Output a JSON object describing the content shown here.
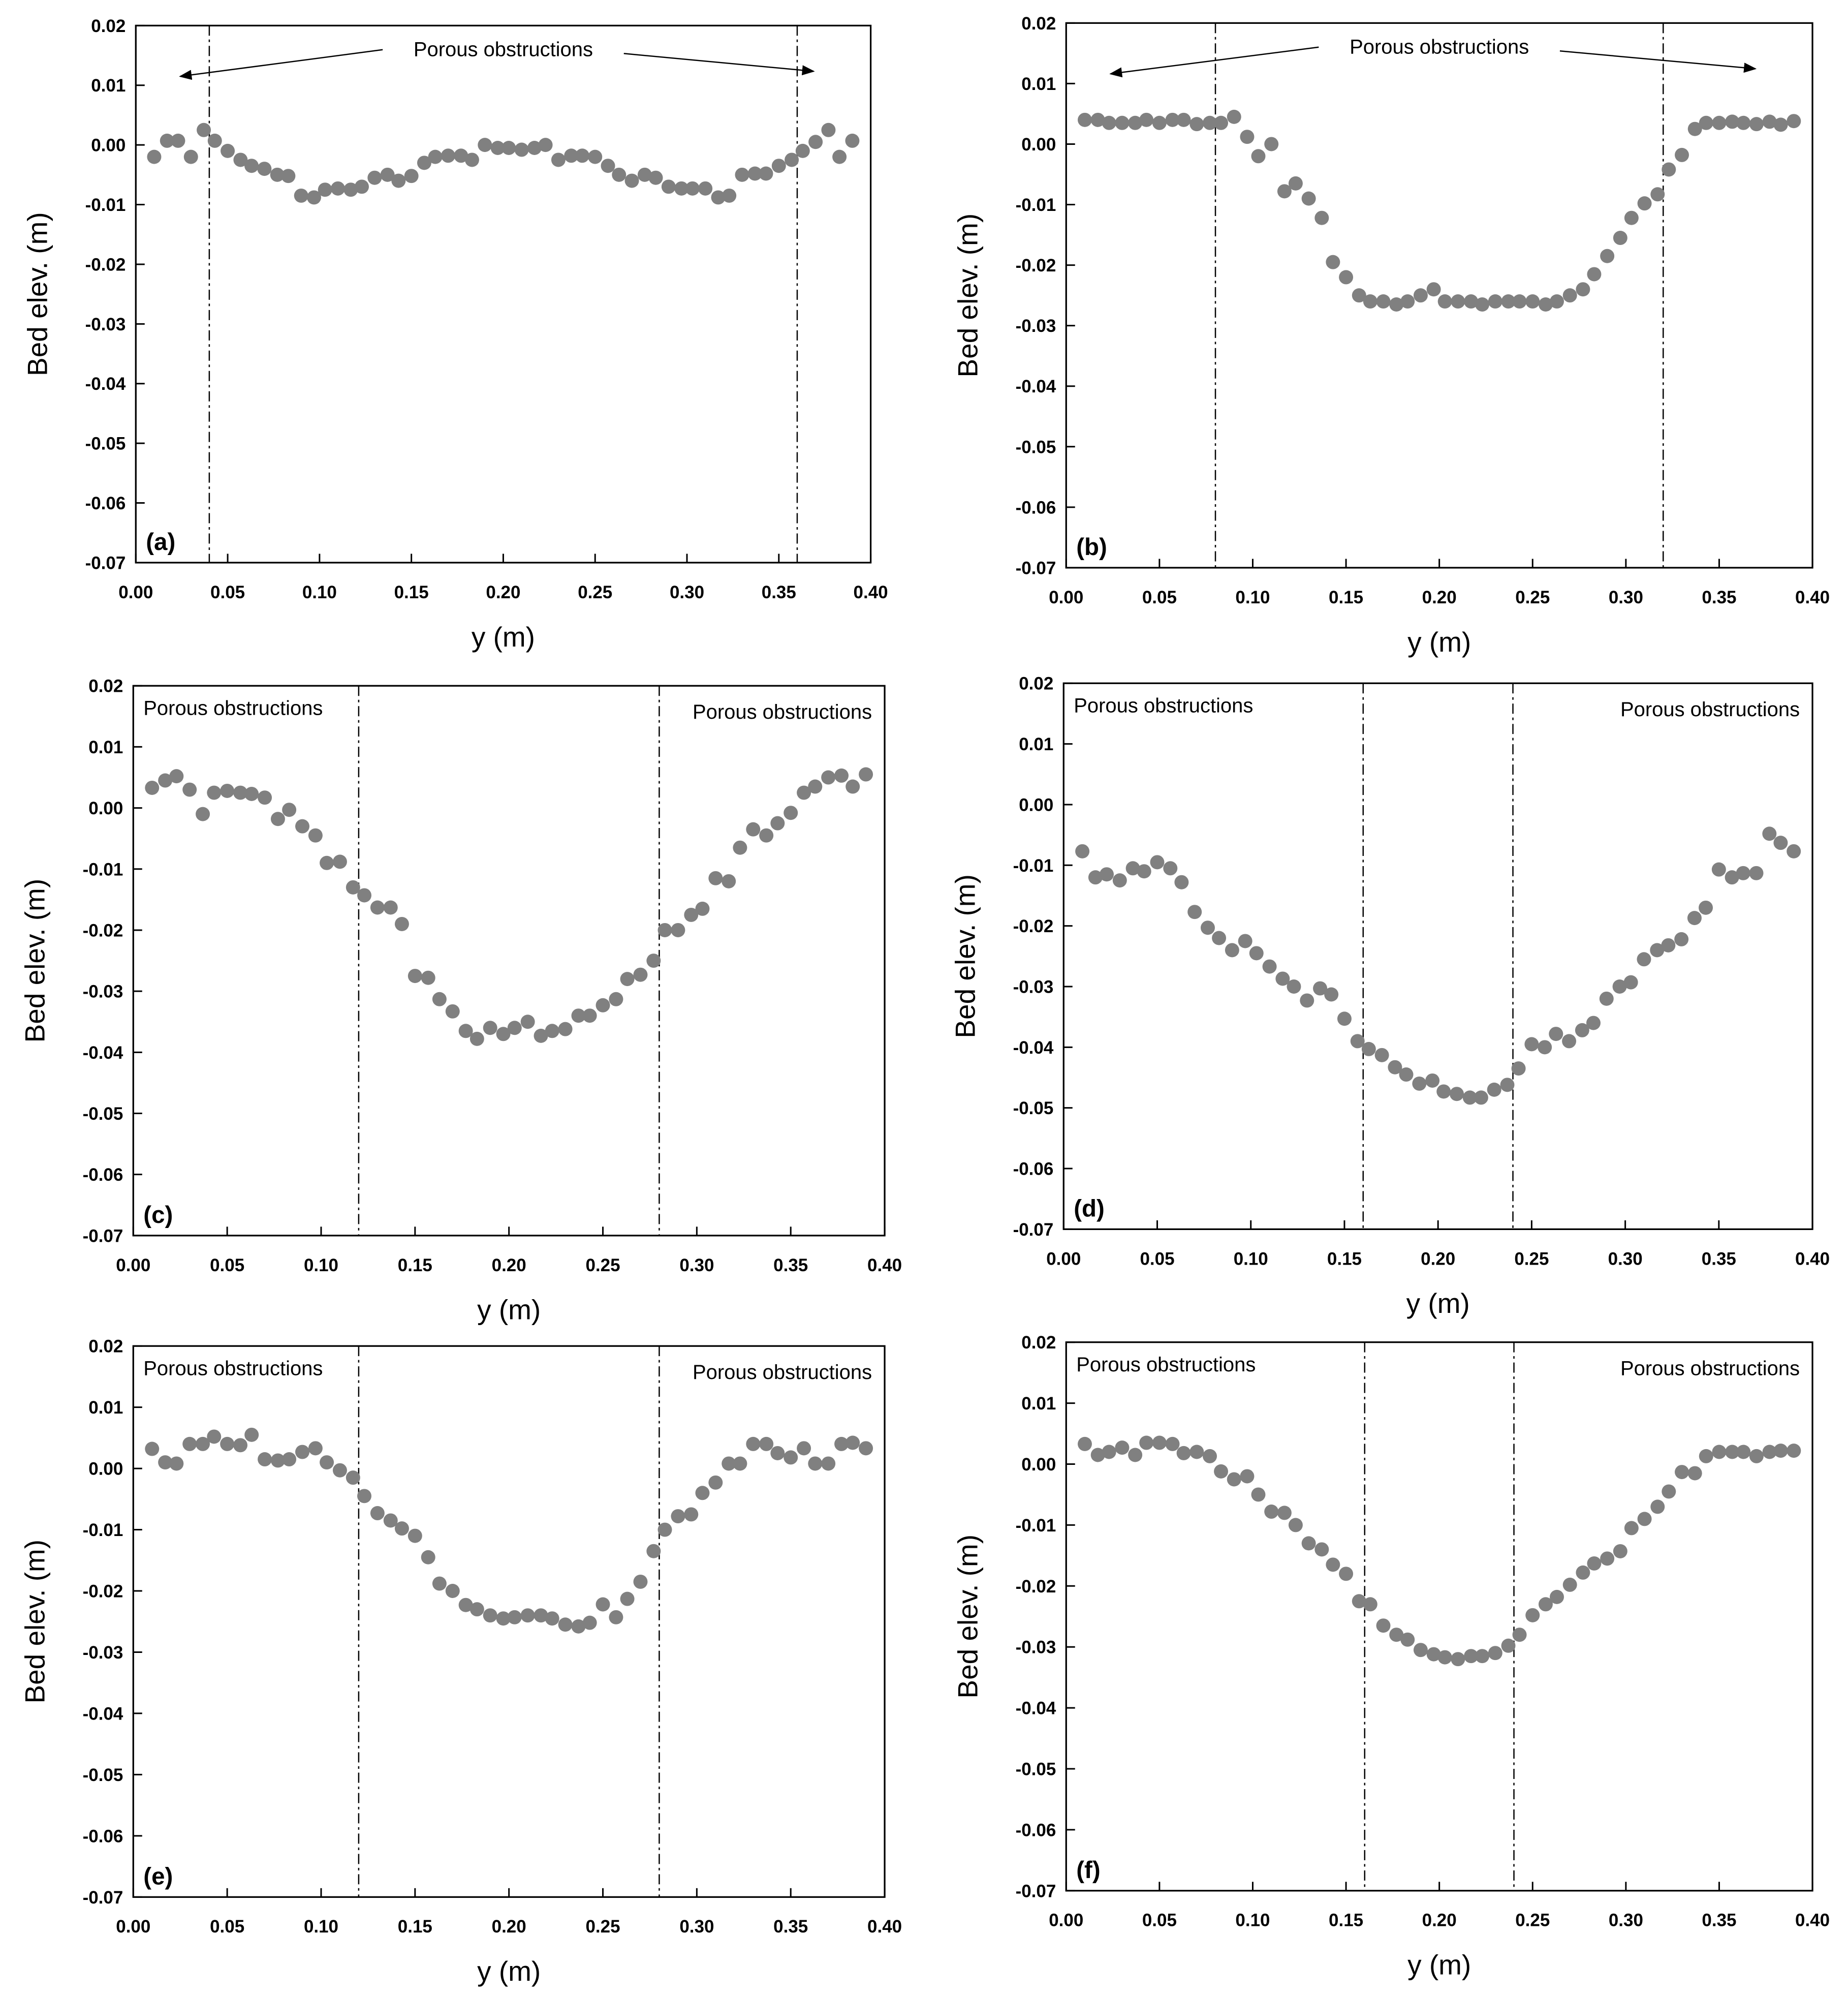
{
  "chart_data": [
    {
      "type": "scatter",
      "panel_label": "(a)",
      "xlabel": "y (m)",
      "ylabel": "Bed elev. (m)",
      "color": "#808080",
      "annotations": [
        "Porous obstructions"
      ],
      "vlines": [
        0.04,
        0.36
      ],
      "xlim": [
        0,
        0.4
      ],
      "ylim": [
        -0.07,
        0.02
      ],
      "xticks": [
        {
          "value": 0,
          "label": "0.00"
        },
        0.05,
        {
          "value": 0.1,
          "label": "0.10"
        },
        0.15,
        {
          "value": 0.2,
          "label": "0.20"
        },
        0.25,
        {
          "value": 0.3,
          "label": "0.30"
        },
        0.35,
        {
          "value": 0.4,
          "label": "0.40"
        }
      ],
      "yticks": [
        0.02,
        0.01,
        {
          "value": 0,
          "label": "0.00"
        },
        -0.01,
        -0.02,
        -0.03,
        -0.04,
        -0.05,
        -0.06,
        -0.07
      ],
      "x": [
        0.01,
        0.017,
        0.023,
        0.03,
        0.037,
        0.043,
        0.05,
        0.057,
        0.063,
        0.07,
        0.077,
        0.083,
        0.09,
        0.097,
        0.103,
        0.11,
        0.117,
        0.123,
        0.13,
        0.137,
        0.143,
        0.15,
        0.157,
        0.163,
        0.17,
        0.177,
        0.183,
        0.19,
        0.197,
        0.203,
        0.21,
        0.217,
        0.223,
        0.23,
        0.237,
        0.243,
        0.25,
        0.257,
        0.263,
        0.27,
        0.277,
        0.283,
        0.29,
        0.297,
        0.303,
        0.31,
        0.317,
        0.323,
        0.33,
        0.337,
        0.343,
        0.35,
        0.357,
        0.363,
        0.37,
        0.377,
        0.383,
        0.39
      ],
      "values": [
        -0.002,
        0.0007,
        0.0007,
        -0.002,
        0.0025,
        0.0007,
        -0.001,
        -0.0025,
        -0.0035,
        -0.004,
        -0.005,
        -0.0052,
        -0.0085,
        -0.0088,
        -0.0075,
        -0.0073,
        -0.0075,
        -0.007,
        -0.0055,
        -0.005,
        -0.006,
        -0.0052,
        -0.003,
        -0.002,
        -0.0018,
        -0.0018,
        -0.0025,
        0,
        -0.0005,
        -0.0005,
        -0.0008,
        -0.0005,
        0,
        -0.0025,
        -0.0018,
        -0.0018,
        -0.002,
        -0.0035,
        -0.005,
        -0.006,
        -0.005,
        -0.0055,
        -0.007,
        -0.0073,
        -0.0073,
        -0.0073,
        -0.0088,
        -0.0085,
        -0.005,
        -0.0048,
        -0.0048,
        -0.0035,
        -0.0025,
        -0.001,
        0.0005,
        0.0025,
        -0.002,
        0.0007
      ]
    },
    {
      "type": "scatter",
      "panel_label": "(b)",
      "xlabel": "y (m)",
      "ylabel": "Bed elev. (m)",
      "color": "#808080",
      "annotations": [
        "Porous obstructions"
      ],
      "vlines": [
        0.08,
        0.32
      ],
      "xlim": [
        0,
        0.4
      ],
      "ylim": [
        -0.07,
        0.02
      ],
      "xticks": [
        {
          "value": 0,
          "label": "0.00"
        },
        0.05,
        {
          "value": 0.1,
          "label": "0.10"
        },
        0.15,
        {
          "value": 0.2,
          "label": "0.20"
        },
        0.25,
        {
          "value": 0.3,
          "label": "0.30"
        },
        0.35,
        {
          "value": 0.4,
          "label": "0.40"
        }
      ],
      "yticks": [
        0.02,
        0.01,
        {
          "value": 0,
          "label": "0.00"
        },
        -0.01,
        -0.02,
        -0.03,
        -0.04,
        -0.05,
        -0.06,
        -0.07
      ],
      "x": [
        0.01,
        0.017,
        0.023,
        0.03,
        0.037,
        0.043,
        0.05,
        0.057,
        0.063,
        0.07,
        0.077,
        0.083,
        0.09,
        0.097,
        0.103,
        0.11,
        0.117,
        0.123,
        0.13,
        0.137,
        0.143,
        0.15,
        0.157,
        0.163,
        0.17,
        0.177,
        0.183,
        0.19,
        0.197,
        0.203,
        0.21,
        0.217,
        0.223,
        0.23,
        0.237,
        0.243,
        0.25,
        0.257,
        0.263,
        0.27,
        0.277,
        0.283,
        0.29,
        0.297,
        0.303,
        0.31,
        0.317,
        0.323,
        0.33,
        0.337,
        0.343,
        0.35,
        0.357,
        0.363,
        0.37,
        0.377,
        0.383,
        0.39
      ],
      "values": [
        0.004,
        0.004,
        0.0035,
        0.0035,
        0.0035,
        0.004,
        0.0035,
        0.004,
        0.004,
        0.0033,
        0.0035,
        0.0035,
        0.0045,
        0.0012,
        -0.002,
        0,
        -0.0078,
        -0.0065,
        -0.009,
        -0.0122,
        -0.0195,
        -0.022,
        -0.025,
        -0.026,
        -0.026,
        -0.0265,
        -0.026,
        -0.025,
        -0.024,
        -0.026,
        -0.026,
        -0.026,
        -0.0265,
        -0.026,
        -0.026,
        -0.026,
        -0.026,
        -0.0265,
        -0.026,
        -0.025,
        -0.024,
        -0.0215,
        -0.0185,
        -0.0155,
        -0.0122,
        -0.0098,
        -0.0083,
        -0.0042,
        -0.0018,
        0.0025,
        0.0035,
        0.0035,
        0.0037,
        0.0035,
        0.0033,
        0.0037,
        0.0032,
        0.0038
      ]
    },
    {
      "type": "scatter",
      "panel_label": "(c)",
      "xlabel": "y (m)",
      "ylabel": "Bed elev. (m)",
      "color": "#808080",
      "annotations": [
        "Porous obstructions",
        "Porous obstructions"
      ],
      "vlines": [
        0.12,
        0.28
      ],
      "xlim": [
        0,
        0.4
      ],
      "ylim": [
        -0.07,
        0.02
      ],
      "xticks": [
        {
          "value": 0,
          "label": "0.00"
        },
        0.05,
        {
          "value": 0.1,
          "label": "0.10"
        },
        0.15,
        {
          "value": 0.2,
          "label": "0.20"
        },
        0.25,
        {
          "value": 0.3,
          "label": "0.30"
        },
        0.35,
        {
          "value": 0.4,
          "label": "0.40"
        }
      ],
      "yticks": [
        0.02,
        0.01,
        {
          "value": 0,
          "label": "0.00"
        },
        -0.01,
        -0.02,
        -0.03,
        -0.04,
        -0.05,
        -0.06,
        -0.07
      ],
      "x": [
        0.01,
        0.017,
        0.023,
        0.03,
        0.037,
        0.043,
        0.05,
        0.057,
        0.063,
        0.07,
        0.077,
        0.083,
        0.09,
        0.097,
        0.103,
        0.11,
        0.117,
        0.123,
        0.13,
        0.137,
        0.143,
        0.15,
        0.157,
        0.163,
        0.17,
        0.177,
        0.183,
        0.19,
        0.197,
        0.203,
        0.21,
        0.217,
        0.223,
        0.23,
        0.237,
        0.243,
        0.25,
        0.257,
        0.263,
        0.27,
        0.277,
        0.283,
        0.29,
        0.297,
        0.303,
        0.31,
        0.317,
        0.323,
        0.33,
        0.337,
        0.343,
        0.35,
        0.357,
        0.363,
        0.37,
        0.377,
        0.383,
        0.39
      ],
      "values": [
        0.0033,
        0.0045,
        0.0052,
        0.003,
        -0.001,
        0.0025,
        0.0028,
        0.0025,
        0.0023,
        0.0017,
        -0.0018,
        -0.0003,
        -0.003,
        -0.0045,
        -0.009,
        -0.0088,
        -0.013,
        -0.0143,
        -0.0163,
        -0.0163,
        -0.019,
        -0.0275,
        -0.0278,
        -0.0313,
        -0.0333,
        -0.0365,
        -0.0378,
        -0.036,
        -0.037,
        -0.036,
        -0.035,
        -0.0373,
        -0.0365,
        -0.0362,
        -0.034,
        -0.034,
        -0.0323,
        -0.0313,
        -0.028,
        -0.0273,
        -0.025,
        -0.02,
        -0.02,
        -0.0175,
        -0.0165,
        -0.0115,
        -0.012,
        -0.0065,
        -0.0035,
        -0.0045,
        -0.0025,
        -0.0008,
        0.0025,
        0.0035,
        0.005,
        0.0053,
        0.0035,
        0.0055
      ]
    },
    {
      "type": "scatter",
      "panel_label": "(d)",
      "xlabel": "y (m)",
      "ylabel": "Bed elev. (m)",
      "color": "#808080",
      "annotations": [
        "Porous obstructions",
        "Porous obstructions"
      ],
      "vlines": [
        0.16,
        0.24
      ],
      "xlim": [
        0,
        0.4
      ],
      "ylim": [
        -0.07,
        0.02
      ],
      "xticks": [
        {
          "value": 0,
          "label": "0.00"
        },
        0.05,
        {
          "value": 0.1,
          "label": "0.10"
        },
        0.15,
        {
          "value": 0.2,
          "label": "0.20"
        },
        0.25,
        {
          "value": 0.3,
          "label": "0.30"
        },
        0.35,
        {
          "value": 0.4,
          "label": "0.40"
        }
      ],
      "yticks": [
        0.02,
        0.01,
        {
          "value": 0,
          "label": "0.00"
        },
        -0.01,
        -0.02,
        -0.03,
        -0.04,
        -0.05,
        -0.06,
        -0.07
      ],
      "x": [
        0.01,
        0.017,
        0.023,
        0.03,
        0.037,
        0.043,
        0.05,
        0.057,
        0.063,
        0.07,
        0.077,
        0.083,
        0.09,
        0.097,
        0.103,
        0.11,
        0.117,
        0.123,
        0.13,
        0.137,
        0.143,
        0.15,
        0.157,
        0.163,
        0.17,
        0.177,
        0.183,
        0.19,
        0.197,
        0.203,
        0.21,
        0.217,
        0.223,
        0.23,
        0.237,
        0.243,
        0.25,
        0.257,
        0.263,
        0.27,
        0.277,
        0.283,
        0.29,
        0.297,
        0.303,
        0.31,
        0.317,
        0.323,
        0.33,
        0.337,
        0.343,
        0.35,
        0.357,
        0.363,
        0.37,
        0.377,
        0.383,
        0.39
      ],
      "values": [
        -0.0077,
        -0.012,
        -0.0115,
        -0.0125,
        -0.0105,
        -0.011,
        -0.0095,
        -0.0105,
        -0.0128,
        -0.0177,
        -0.0203,
        -0.022,
        -0.024,
        -0.0225,
        -0.0245,
        -0.0267,
        -0.0287,
        -0.03,
        -0.0323,
        -0.0303,
        -0.0313,
        -0.0353,
        -0.039,
        -0.0403,
        -0.0413,
        -0.0433,
        -0.0445,
        -0.046,
        -0.0455,
        -0.0473,
        -0.0477,
        -0.0483,
        -0.0483,
        -0.047,
        -0.0462,
        -0.0435,
        -0.0395,
        -0.04,
        -0.0378,
        -0.039,
        -0.0372,
        -0.036,
        -0.032,
        -0.03,
        -0.0293,
        -0.0255,
        -0.024,
        -0.0232,
        -0.0222,
        -0.0187,
        -0.017,
        -0.0107,
        -0.012,
        -0.0113,
        -0.0113,
        -0.0048,
        -0.0063,
        -0.0077
      ]
    },
    {
      "type": "scatter",
      "panel_label": "(e)",
      "xlabel": "y (m)",
      "ylabel": "Bed elev. (m)",
      "color": "#808080",
      "annotations": [
        "Porous obstructions",
        "Porous obstructions"
      ],
      "vlines": [
        0.12,
        0.28
      ],
      "xlim": [
        0,
        0.4
      ],
      "ylim": [
        -0.07,
        0.02
      ],
      "xticks": [
        {
          "value": 0,
          "label": "0.00"
        },
        0.05,
        {
          "value": 0.1,
          "label": "0.10"
        },
        0.15,
        {
          "value": 0.2,
          "label": "0.20"
        },
        0.25,
        {
          "value": 0.3,
          "label": "0.30"
        },
        0.35,
        {
          "value": 0.4,
          "label": "0.40"
        }
      ],
      "yticks": [
        0.02,
        0.01,
        {
          "value": 0,
          "label": "0.00"
        },
        -0.01,
        -0.02,
        -0.03,
        -0.04,
        -0.05,
        -0.06,
        -0.07
      ],
      "x": [
        0.01,
        0.017,
        0.023,
        0.03,
        0.037,
        0.043,
        0.05,
        0.057,
        0.063,
        0.07,
        0.077,
        0.083,
        0.09,
        0.097,
        0.103,
        0.11,
        0.117,
        0.123,
        0.13,
        0.137,
        0.143,
        0.15,
        0.157,
        0.163,
        0.17,
        0.177,
        0.183,
        0.19,
        0.197,
        0.203,
        0.21,
        0.217,
        0.223,
        0.23,
        0.237,
        0.243,
        0.25,
        0.257,
        0.263,
        0.27,
        0.277,
        0.283,
        0.29,
        0.297,
        0.303,
        0.31,
        0.317,
        0.323,
        0.33,
        0.337,
        0.343,
        0.35,
        0.357,
        0.363,
        0.37,
        0.377,
        0.383,
        0.39
      ],
      "values": [
        0.0032,
        0.001,
        0.0008,
        0.004,
        0.004,
        0.0052,
        0.004,
        0.0038,
        0.0055,
        0.0015,
        0.0013,
        0.0015,
        0.0027,
        0.0033,
        0.001,
        -0.0003,
        -0.0015,
        -0.0045,
        -0.0073,
        -0.0085,
        -0.0098,
        -0.011,
        -0.0145,
        -0.0188,
        -0.02,
        -0.0223,
        -0.023,
        -0.024,
        -0.0245,
        -0.0243,
        -0.024,
        -0.024,
        -0.0245,
        -0.0255,
        -0.0258,
        -0.0252,
        -0.0222,
        -0.0243,
        -0.0213,
        -0.0185,
        -0.0135,
        -0.01,
        -0.0078,
        -0.0075,
        -0.004,
        -0.0023,
        0.0008,
        0.0008,
        0.004,
        0.004,
        0.0025,
        0.0018,
        0.0033,
        0.0008,
        0.0008,
        0.004,
        0.0042,
        0.0033
      ]
    },
    {
      "type": "scatter",
      "panel_label": "(f)",
      "xlabel": "y (m)",
      "ylabel": "Bed elev. (m)",
      "color": "#808080",
      "annotations": [
        "Porous obstructions",
        "Porous obstructions"
      ],
      "vlines": [
        0.16,
        0.24
      ],
      "xlim": [
        0,
        0.4
      ],
      "ylim": [
        -0.07,
        0.02
      ],
      "xticks": [
        {
          "value": 0,
          "label": "0.00"
        },
        0.05,
        {
          "value": 0.1,
          "label": "0.10"
        },
        0.15,
        {
          "value": 0.2,
          "label": "0.20"
        },
        0.25,
        {
          "value": 0.3,
          "label": "0.30"
        },
        0.35,
        {
          "value": 0.4,
          "label": "0.40"
        }
      ],
      "yticks": [
        0.02,
        0.01,
        {
          "value": 0,
          "label": "0.00"
        },
        -0.01,
        -0.02,
        -0.03,
        -0.04,
        -0.05,
        -0.06,
        -0.07
      ],
      "x": [
        0.01,
        0.017,
        0.023,
        0.03,
        0.037,
        0.043,
        0.05,
        0.057,
        0.063,
        0.07,
        0.077,
        0.083,
        0.09,
        0.097,
        0.103,
        0.11,
        0.117,
        0.123,
        0.13,
        0.137,
        0.143,
        0.15,
        0.157,
        0.163,
        0.17,
        0.177,
        0.183,
        0.19,
        0.197,
        0.203,
        0.21,
        0.217,
        0.223,
        0.23,
        0.237,
        0.243,
        0.25,
        0.257,
        0.263,
        0.27,
        0.277,
        0.283,
        0.29,
        0.297,
        0.303,
        0.31,
        0.317,
        0.323,
        0.33,
        0.337,
        0.343,
        0.35,
        0.357,
        0.363,
        0.37,
        0.377,
        0.383,
        0.39
      ],
      "values": [
        0.0033,
        0.0015,
        0.002,
        0.0027,
        0.0015,
        0.0035,
        0.0035,
        0.0033,
        0.0018,
        0.002,
        0.0013,
        -0.0012,
        -0.0025,
        -0.002,
        -0.005,
        -0.0078,
        -0.008,
        -0.01,
        -0.013,
        -0.014,
        -0.0165,
        -0.018,
        -0.0225,
        -0.023,
        -0.0265,
        -0.028,
        -0.0288,
        -0.0305,
        -0.0312,
        -0.0317,
        -0.032,
        -0.0315,
        -0.0315,
        -0.031,
        -0.0298,
        -0.028,
        -0.0248,
        -0.023,
        -0.0218,
        -0.0198,
        -0.0178,
        -0.0163,
        -0.0155,
        -0.0143,
        -0.0105,
        -0.009,
        -0.007,
        -0.0045,
        -0.0013,
        -0.0015,
        0.0013,
        0.002,
        0.002,
        0.002,
        0.0013,
        0.002,
        0.0022,
        0.0022
      ]
    }
  ]
}
